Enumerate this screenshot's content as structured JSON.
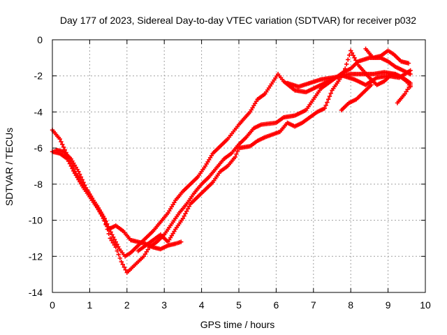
{
  "chart_data": {
    "type": "scatter",
    "title": "Day 177 of 2023, Sidereal Day-to-day VTEC variation (SDTVAR) for receiver p032",
    "xlabel": "GPS time / hours",
    "ylabel": "SDTVAR / TECUs",
    "xlim": [
      0,
      10
    ],
    "ylim": [
      -14,
      0
    ],
    "xticks": [
      0,
      1,
      2,
      3,
      4,
      5,
      6,
      7,
      8,
      9,
      10
    ],
    "yticks": [
      0,
      -2,
      -4,
      -6,
      -8,
      -10,
      -12,
      -14
    ],
    "grid": true,
    "marker": "plus",
    "color": "#ff0000",
    "series": [
      {
        "points": [
          [
            0.0,
            -5.0
          ],
          [
            0.2,
            -5.5
          ],
          [
            0.4,
            -6.4
          ],
          [
            0.6,
            -7.3
          ],
          [
            0.8,
            -8.0
          ],
          [
            1.0,
            -8.6
          ],
          [
            1.2,
            -9.2
          ],
          [
            1.4,
            -9.9
          ],
          [
            1.6,
            -10.8
          ],
          [
            1.8,
            -11.6
          ],
          [
            1.95,
            -12.0
          ],
          [
            2.1,
            -11.8
          ],
          [
            2.3,
            -11.4
          ],
          [
            2.5,
            -11.0
          ],
          [
            2.7,
            -10.6
          ],
          [
            2.9,
            -10.1
          ],
          [
            3.1,
            -9.6
          ],
          [
            3.3,
            -8.9
          ],
          [
            3.5,
            -8.4
          ],
          [
            3.7,
            -8.0
          ],
          [
            3.9,
            -7.6
          ],
          [
            4.1,
            -7.0
          ],
          [
            4.3,
            -6.3
          ],
          [
            4.5,
            -5.9
          ],
          [
            4.7,
            -5.5
          ],
          [
            4.85,
            -5.1
          ],
          [
            5.0,
            -4.7
          ],
          [
            5.3,
            -4.0
          ],
          [
            5.5,
            -3.3
          ],
          [
            5.7,
            -3.0
          ],
          [
            6.05,
            -1.9
          ],
          [
            6.2,
            -2.3
          ],
          [
            6.5,
            -2.8
          ],
          [
            6.8,
            -2.9
          ],
          [
            7.1,
            -2.6
          ],
          [
            7.4,
            -2.3
          ],
          [
            7.7,
            -2.0
          ],
          [
            8.0,
            -1.9
          ],
          [
            8.3,
            -1.9
          ],
          [
            8.6,
            -1.9
          ],
          [
            8.9,
            -1.8
          ],
          [
            9.2,
            -1.9
          ],
          [
            9.4,
            -2.1
          ],
          [
            9.6,
            -2.4
          ]
        ]
      },
      {
        "points": [
          [
            0.0,
            -6.2
          ],
          [
            0.2,
            -6.3
          ],
          [
            0.4,
            -6.6
          ],
          [
            0.6,
            -7.4
          ],
          [
            0.8,
            -8.1
          ],
          [
            1.0,
            -8.7
          ],
          [
            1.2,
            -9.3
          ],
          [
            1.4,
            -10.0
          ],
          [
            1.55,
            -11.0
          ],
          [
            1.7,
            -11.5
          ],
          [
            1.85,
            -12.3
          ],
          [
            2.0,
            -12.9
          ],
          [
            2.15,
            -12.6
          ],
          [
            2.3,
            -12.3
          ],
          [
            2.45,
            -12.0
          ],
          [
            2.6,
            -11.5
          ],
          [
            2.8,
            -11.2
          ],
          [
            3.0,
            -10.8
          ],
          [
            3.2,
            -10.2
          ],
          [
            3.4,
            -9.6
          ],
          [
            3.6,
            -9.1
          ],
          [
            3.8,
            -8.5
          ],
          [
            4.0,
            -8.0
          ],
          [
            4.2,
            -7.6
          ],
          [
            4.4,
            -7.1
          ],
          [
            4.6,
            -6.6
          ],
          [
            4.8,
            -6.3
          ],
          [
            5.0,
            -5.8
          ],
          [
            5.2,
            -5.4
          ],
          [
            5.4,
            -4.9
          ],
          [
            5.6,
            -4.7
          ],
          [
            6.0,
            -4.6
          ],
          [
            6.2,
            -4.3
          ],
          [
            6.5,
            -4.2
          ],
          [
            6.8,
            -3.9
          ],
          [
            7.0,
            -3.3
          ],
          [
            7.2,
            -2.7
          ],
          [
            7.4,
            -2.4
          ],
          [
            7.6,
            -2.1
          ],
          [
            7.8,
            -1.8
          ],
          [
            8.0,
            -1.6
          ],
          [
            8.2,
            -1.2
          ],
          [
            8.5,
            -1.0
          ],
          [
            8.8,
            -1.0
          ],
          [
            9.0,
            -1.2
          ],
          [
            9.2,
            -1.5
          ],
          [
            9.4,
            -1.7
          ],
          [
            9.6,
            -1.9
          ]
        ]
      },
      {
        "points": [
          [
            0.1,
            -6.1
          ],
          [
            0.3,
            -6.2
          ],
          [
            0.5,
            -6.6
          ],
          [
            0.7,
            -7.3
          ],
          [
            0.9,
            -8.2
          ],
          [
            1.1,
            -8.9
          ],
          [
            1.3,
            -9.6
          ],
          [
            1.5,
            -10.5
          ],
          [
            1.7,
            -10.3
          ],
          [
            1.9,
            -10.6
          ],
          [
            2.1,
            -11.1
          ],
          [
            2.3,
            -11.2
          ],
          [
            2.5,
            -11.3
          ],
          [
            2.7,
            -11.5
          ],
          [
            2.9,
            -11.6
          ],
          [
            3.1,
            -11.4
          ],
          [
            3.3,
            -11.3
          ],
          [
            3.45,
            -11.2
          ]
        ]
      },
      {
        "points": [
          [
            2.3,
            -11.7
          ],
          [
            2.5,
            -11.4
          ],
          [
            2.7,
            -11.1
          ],
          [
            2.9,
            -10.8
          ],
          [
            3.1,
            -11.2
          ],
          [
            3.3,
            -10.5
          ],
          [
            3.5,
            -9.9
          ],
          [
            3.7,
            -9.1
          ],
          [
            3.9,
            -8.7
          ],
          [
            4.1,
            -8.3
          ],
          [
            4.3,
            -7.9
          ],
          [
            4.5,
            -7.3
          ],
          [
            4.7,
            -7.0
          ],
          [
            4.9,
            -6.5
          ],
          [
            5.0,
            -6.0
          ],
          [
            5.3,
            -5.9
          ],
          [
            5.5,
            -5.6
          ],
          [
            5.7,
            -5.4
          ],
          [
            6.1,
            -5.1
          ],
          [
            6.3,
            -4.6
          ],
          [
            6.5,
            -4.8
          ],
          [
            6.7,
            -4.6
          ],
          [
            6.9,
            -4.3
          ],
          [
            7.1,
            -4.0
          ],
          [
            7.3,
            -3.8
          ],
          [
            7.5,
            -2.8
          ],
          [
            7.7,
            -2.2
          ],
          [
            7.85,
            -1.6
          ],
          [
            8.0,
            -0.6
          ],
          [
            8.2,
            -1.4
          ],
          [
            8.5,
            -2.1
          ],
          [
            8.7,
            -2.5
          ],
          [
            8.9,
            -2.3
          ],
          [
            9.1,
            -1.9
          ],
          [
            9.3,
            -2.0
          ],
          [
            9.5,
            -2.3
          ],
          [
            9.6,
            -2.6
          ]
        ]
      },
      {
        "points": [
          [
            7.75,
            -3.9
          ],
          [
            7.95,
            -3.5
          ],
          [
            8.15,
            -3.3
          ],
          [
            8.35,
            -2.9
          ],
          [
            8.55,
            -2.5
          ],
          [
            9.25,
            -3.5
          ],
          [
            9.45,
            -3.0
          ],
          [
            9.6,
            -2.5
          ]
        ]
      },
      {
        "points": [
          [
            8.4,
            -0.5
          ],
          [
            8.6,
            -1.0
          ],
          [
            8.8,
            -0.9
          ],
          [
            9.0,
            -0.6
          ],
          [
            9.15,
            -0.8
          ],
          [
            9.35,
            -1.2
          ],
          [
            9.55,
            -1.3
          ]
        ]
      },
      {
        "points": [
          [
            6.3,
            -2.4
          ],
          [
            6.6,
            -2.6
          ],
          [
            6.9,
            -2.4
          ],
          [
            7.2,
            -2.2
          ],
          [
            7.5,
            -2.1
          ],
          [
            7.8,
            -2.0
          ],
          [
            8.1,
            -2.2
          ],
          [
            8.4,
            -2.5
          ],
          [
            8.7,
            -2.1
          ],
          [
            9.0,
            -2.0
          ],
          [
            9.3,
            -2.1
          ],
          [
            9.6,
            -1.7
          ]
        ]
      }
    ]
  }
}
